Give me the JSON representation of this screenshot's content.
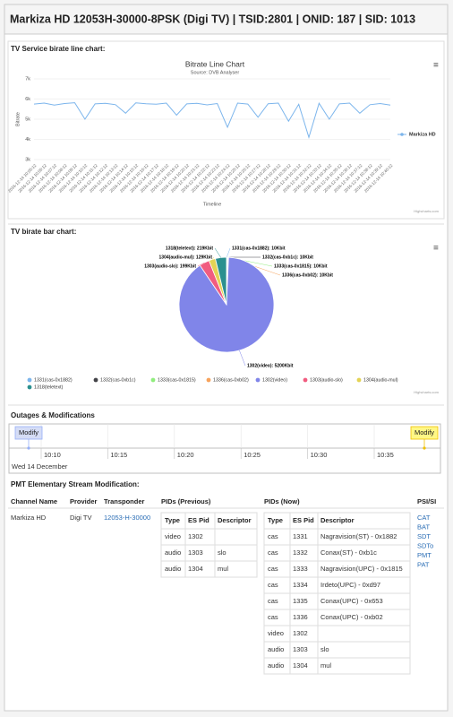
{
  "header": {
    "title": "Markiza HD 12053H-30000-8PSK (Digi TV) | TSID:2801 | ONID: 187 | SID: 1013"
  },
  "line_section": {
    "heading": "TV Service birate line chart:"
  },
  "pie_section": {
    "heading": "TV birate bar chart:"
  },
  "chart_data": [
    {
      "type": "line",
      "title": "Bitrate Line Chart",
      "subtitle": "Source: DVB Analyser",
      "x_label": "Timeline",
      "y_label": "Bitrate",
      "categories": [
        "2016-12-14 10:05:12",
        "2016-12-14 10:06:12",
        "2016-12-14 10:07:12",
        "2016-12-14 10:08:12",
        "2016-12-14 10:09:12",
        "2016-12-14 10:10:12",
        "2016-12-14 10:11:12",
        "2016-12-14 10:12:12",
        "2016-12-14 10:13:12",
        "2016-12-14 10:14:12",
        "2016-12-14 10:15:12",
        "2016-12-14 10:16:12",
        "2016-12-14 10:17:12",
        "2016-12-14 10:18:12",
        "2016-12-14 10:19:12",
        "2016-12-14 10:20:12",
        "2016-12-14 10:21:12",
        "2016-12-14 10:22:12",
        "2016-12-14 10:23:12",
        "2016-12-14 10:24:12",
        "2016-12-14 10:25:12",
        "2016-12-14 10:26:12",
        "2016-12-14 10:27:12",
        "2016-12-14 10:28:12",
        "2016-12-14 10:29:12",
        "2016-12-14 10:30:12",
        "2016-12-14 10:31:12",
        "2016-12-14 10:32:12",
        "2016-12-14 10:33:12",
        "2016-12-14 10:34:12",
        "2016-12-14 10:35:12",
        "2016-12-14 10:36:12",
        "2016-12-14 10:37:12",
        "2016-12-14 10:38:12",
        "2016-12-14 10:39:12",
        "2016-12-14 10:40:12"
      ],
      "series": [
        {
          "name": "Markiza HD",
          "color": "#7cb5ec",
          "values": [
            5750,
            5800,
            5700,
            5780,
            5820,
            5000,
            5760,
            5790,
            5720,
            5300,
            5810,
            5770,
            5740,
            5800,
            5200,
            5760,
            5790,
            5710,
            5780,
            4600,
            5800,
            5750,
            5100,
            5770,
            5800,
            4900,
            5740,
            4100,
            5790,
            5000,
            5760,
            5800,
            5300,
            5720,
            5780,
            5700
          ]
        }
      ],
      "ylim": [
        3000,
        7000
      ],
      "yticks": [
        {
          "value": 3000,
          "label": "3k"
        },
        {
          "value": 4000,
          "label": "4k"
        },
        {
          "value": 5000,
          "label": "5k"
        },
        {
          "value": 6000,
          "label": "6k"
        },
        {
          "value": 7000,
          "label": "7k"
        }
      ],
      "grid": true,
      "legend": "right",
      "credits": "Highcharts.com"
    },
    {
      "type": "pie",
      "categories": [
        "1331(cas-0x1882)",
        "1332(cas-0xb1c)",
        "1333(cas-0x1815)",
        "1336(cas-0xb02)",
        "1302(video)",
        "1303(audio-slo)",
        "1304(audio-mul)",
        "1318(teletext)"
      ],
      "values": [
        10,
        10,
        10,
        10,
        5200,
        199,
        129,
        219
      ],
      "value_labels": [
        "1331(cas-0x1882): 10Kbit",
        "1332(cas-0xb1c): 10Kbit",
        "1333(cas-0x1815): 10Kbit",
        "1336(cas-0xb02): 10Kbit",
        "1302(video): 5200Kbit",
        "1303(audio-slo): 199Kbit",
        "1304(audio-mul): 129Kbit",
        "1318(teletext): 219Kbit"
      ],
      "colors": [
        "#7cb5ec",
        "#434348",
        "#90ed7d",
        "#f7a35c",
        "#8085e9",
        "#f15c80",
        "#e4d354",
        "#2b908f"
      ],
      "legend": "bottom",
      "credits": "Highcharts.com"
    }
  ],
  "timeline": {
    "heading": "Outages & Modifications",
    "items": [
      "Modify",
      "Modify"
    ],
    "ticks": [
      "10:10",
      "10:15",
      "10:20",
      "10:25",
      "10:30",
      "10:35"
    ],
    "date": "Wed 14 December"
  },
  "pmt": {
    "heading": "PMT Elementary Stream Modification:",
    "columns": [
      "Channel Name",
      "Provider",
      "Transponder",
      "PIDs (Previous)",
      "PIDs (Now)",
      "PSI/SI"
    ],
    "channel": "Markiza HD",
    "provider": "Digi TV",
    "transponder": "12053-H-30000",
    "sub_columns": [
      "Type",
      "ES Pid",
      "Descriptor"
    ],
    "previous": [
      [
        "video",
        "1302"
      ],
      [
        "audio",
        "1303",
        "slo"
      ],
      [
        "audio",
        "1304",
        "mul"
      ]
    ],
    "now": [
      [
        "cas",
        "1331",
        "Nagravision(ST) - 0x1882"
      ],
      [
        "cas",
        "1332",
        "Conax(ST) - 0xb1c"
      ],
      [
        "cas",
        "1333",
        "Nagravision(UPC) - 0x1815"
      ],
      [
        "cas",
        "1334",
        "Irdeto(UPC) - 0xd97"
      ],
      [
        "cas",
        "1335",
        "Conax(UPC) - 0x653"
      ],
      [
        "cas",
        "1336",
        "Conax(UPC) - 0xb02"
      ],
      [
        "video",
        "1302"
      ],
      [
        "audio",
        "1303",
        "slo"
      ],
      [
        "audio",
        "1304",
        "mul"
      ]
    ],
    "psi_links": [
      "CAT",
      "BAT",
      "SDT",
      "SDTo",
      "PMT",
      "PAT"
    ]
  }
}
